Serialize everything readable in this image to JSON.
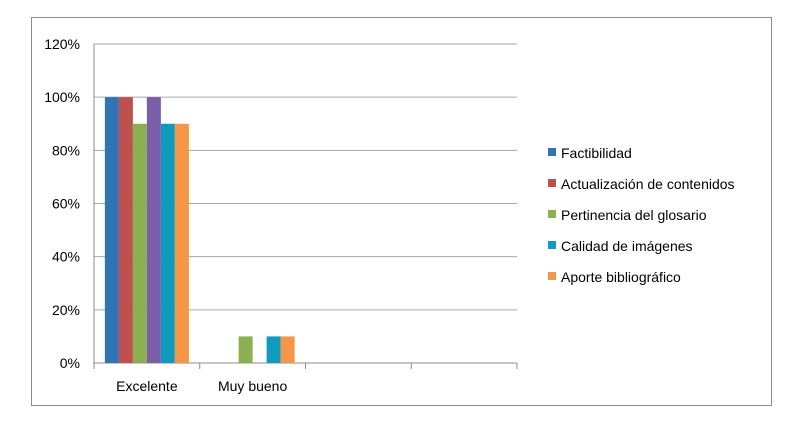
{
  "chart_data": {
    "type": "bar",
    "categories": [
      "Excelente",
      "Muy bueno",
      "",
      ""
    ],
    "series": [
      {
        "name": "Factibilidad",
        "color": "#2e75b6",
        "values": [
          100,
          0,
          null,
          null
        ]
      },
      {
        "name": "Actualización de contenidos",
        "color": "#c0504d",
        "values": [
          100,
          0,
          null,
          null
        ]
      },
      {
        "name": "Pertinencia del glosario",
        "color": "#8cb04f",
        "values": [
          90,
          10,
          null,
          null
        ]
      },
      {
        "name": "Calidad de imágenes",
        "color": "#0e9bbd",
        "values": [
          90,
          10,
          null,
          null
        ]
      },
      {
        "name": "Aporte bibliográfico",
        "color": "#f79646",
        "values": [
          90,
          10,
          null,
          null
        ]
      }
    ],
    "extra_series_color": "#7b5ea7",
    "extra_series_values": [
      100,
      0,
      null,
      null
    ],
    "y_ticks": [
      "0%",
      "20%",
      "40%",
      "60%",
      "80%",
      "100%",
      "120%"
    ],
    "ylim": [
      0,
      120
    ],
    "grid": true,
    "legend_position": "right"
  }
}
